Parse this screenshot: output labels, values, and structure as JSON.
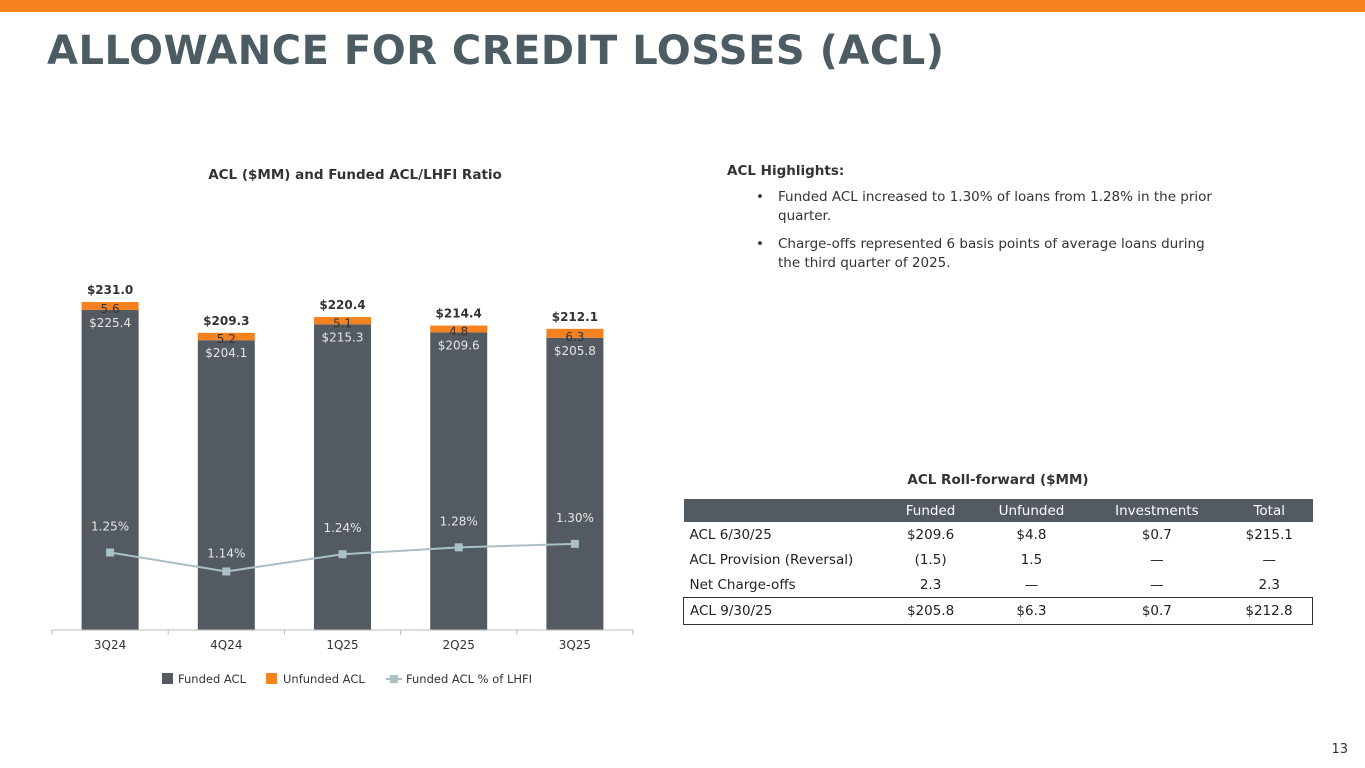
{
  "page": {
    "title": "ALLOWANCE FOR CREDIT LOSSES (ACL)",
    "page_number": "13",
    "accent_color": "#f5821f",
    "title_color": "#4d5b63"
  },
  "chart_data": {
    "type": "bar",
    "title": "ACL ($MM) and Funded ACL/LHFI Ratio",
    "categories": [
      "3Q24",
      "4Q24",
      "1Q25",
      "2Q25",
      "3Q25"
    ],
    "series": [
      {
        "name": "Funded ACL",
        "kind": "stacked-bar",
        "color": "#545a62",
        "values": [
          225.4,
          204.1,
          215.3,
          209.6,
          205.8
        ],
        "labels": [
          "$225.4",
          "$204.1",
          "$215.3",
          "$209.6",
          "$205.8"
        ]
      },
      {
        "name": "Unfunded ACL",
        "kind": "stacked-bar",
        "color": "#f5821f",
        "values": [
          5.6,
          5.2,
          5.1,
          4.8,
          6.3
        ],
        "labels": [
          "5.6",
          "5.2",
          "5.1",
          "4.8",
          "6.3"
        ]
      },
      {
        "name": "Funded ACL % of LHFI",
        "kind": "line",
        "axis": "secondary",
        "color": "#a9c0c6",
        "values": [
          1.25,
          1.14,
          1.24,
          1.28,
          1.3
        ],
        "labels": [
          "1.25%",
          "1.14%",
          "1.24%",
          "1.28%",
          "1.30%"
        ]
      }
    ],
    "totals": [
      "$231.0",
      "$209.3",
      "$220.4",
      "$214.4",
      "$212.1"
    ],
    "total_values": [
      231.0,
      209.3,
      220.4,
      214.4,
      212.1
    ],
    "ylim": [
      0,
      240
    ],
    "ylim_secondary": [
      0.8,
      1.7
    ],
    "legend_position": "bottom",
    "grid": false
  },
  "highlights": {
    "title": "ACL Highlights:",
    "items": [
      "Funded ACL increased to 1.30% of loans from 1.28% in the prior quarter.",
      "Charge-offs represented 6 basis points of average loans during the third quarter of 2025."
    ],
    "bullet": "•"
  },
  "rollforward": {
    "title": "ACL Roll-forward ($MM)",
    "headers": [
      "",
      "Funded",
      "Unfunded",
      "Investments",
      "Total"
    ],
    "rows": [
      [
        "ACL  6/30/25",
        "$209.6",
        "$4.8",
        "$0.7",
        "$215.1"
      ],
      [
        "ACL Provision (Reversal)",
        "(1.5)",
        "1.5",
        "—",
        "—"
      ],
      [
        "Net Charge-offs",
        "2.3",
        "—",
        "—",
        "2.3"
      ],
      [
        "ACL  9/30/25",
        "$205.8",
        "$6.3",
        "$0.7",
        "$212.8"
      ]
    ]
  }
}
